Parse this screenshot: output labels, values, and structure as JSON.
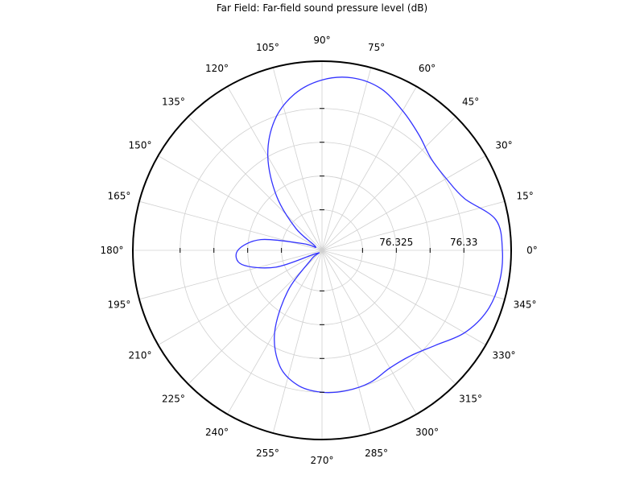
{
  "chart_data": {
    "type": "polar-line",
    "title": "Far Field: Far-field sound pressure level (dB)",
    "angle_unit": "degrees",
    "angle_ticks": [
      {
        "deg": 0,
        "label": "0°"
      },
      {
        "deg": 15,
        "label": "15°"
      },
      {
        "deg": 30,
        "label": "30°"
      },
      {
        "deg": 45,
        "label": "45°"
      },
      {
        "deg": 60,
        "label": "60°"
      },
      {
        "deg": 75,
        "label": "75°"
      },
      {
        "deg": 90,
        "label": "90°"
      },
      {
        "deg": 105,
        "label": "105°"
      },
      {
        "deg": 120,
        "label": "120°"
      },
      {
        "deg": 135,
        "label": "135°"
      },
      {
        "deg": 150,
        "label": "150°"
      },
      {
        "deg": 165,
        "label": "165°"
      },
      {
        "deg": 180,
        "label": "180°"
      },
      {
        "deg": 195,
        "label": "195°"
      },
      {
        "deg": 210,
        "label": "210°"
      },
      {
        "deg": 225,
        "label": "225°"
      },
      {
        "deg": 240,
        "label": "240°"
      },
      {
        "deg": 255,
        "label": "255°"
      },
      {
        "deg": 270,
        "label": "270°"
      },
      {
        "deg": 285,
        "label": "285°"
      },
      {
        "deg": 300,
        "label": "300°"
      },
      {
        "deg": 315,
        "label": "315°"
      },
      {
        "deg": 330,
        "label": "330°"
      },
      {
        "deg": 345,
        "label": "345°"
      }
    ],
    "r_range": [
      76.3195,
      76.3335
    ],
    "r_rings": [
      76.3225,
      76.325,
      76.3275,
      76.33
    ],
    "r_tick_labels": [
      {
        "value": 76.325,
        "label": "76.325"
      },
      {
        "value": 76.33,
        "label": "76.33"
      }
    ],
    "grid": true,
    "series": [
      {
        "color": "#3333ff",
        "points": [
          {
            "theta": 0,
            "r": 76.33285
          },
          {
            "theta": 10,
            "r": 76.33256
          },
          {
            "theta": 20,
            "r": 76.33072
          },
          {
            "theta": 30,
            "r": 76.33012
          },
          {
            "theta": 40,
            "r": 76.33005
          },
          {
            "theta": 50,
            "r": 76.33066
          },
          {
            "theta": 60,
            "r": 76.33143
          },
          {
            "theta": 70,
            "r": 76.33224
          },
          {
            "theta": 80,
            "r": 76.33246
          },
          {
            "theta": 90,
            "r": 76.33211
          },
          {
            "theta": 100,
            "r": 76.33124
          },
          {
            "theta": 110,
            "r": 76.32975
          },
          {
            "theta": 120,
            "r": 76.32752
          },
          {
            "theta": 130,
            "r": 76.32472
          },
          {
            "theta": 140,
            "r": 76.32201
          },
          {
            "theta": 150,
            "r": 76.32005
          },
          {
            "theta": 160,
            "r": 76.32094
          },
          {
            "theta": 170,
            "r": 76.32409
          },
          {
            "theta": 180,
            "r": 76.32573
          },
          {
            "theta": 190,
            "r": 76.32552
          },
          {
            "theta": 200,
            "r": 76.32313
          },
          {
            "theta": 210,
            "r": 76.31994
          },
          {
            "theta": 220,
            "r": 76.32053
          },
          {
            "theta": 230,
            "r": 76.32345
          },
          {
            "theta": 240,
            "r": 76.32651
          },
          {
            "theta": 250,
            "r": 76.32862
          },
          {
            "theta": 260,
            "r": 76.32965
          },
          {
            "theta": 270,
            "r": 76.33
          },
          {
            "theta": 280,
            "r": 76.33004
          },
          {
            "theta": 290,
            "r": 76.32991
          },
          {
            "theta": 300,
            "r": 76.32955
          },
          {
            "theta": 310,
            "r": 76.32969
          },
          {
            "theta": 320,
            "r": 76.33044
          },
          {
            "theta": 330,
            "r": 76.33169
          },
          {
            "theta": 340,
            "r": 76.33252
          },
          {
            "theta": 350,
            "r": 76.33284
          },
          {
            "theta": 360,
            "r": 76.33285
          }
        ]
      }
    ]
  }
}
